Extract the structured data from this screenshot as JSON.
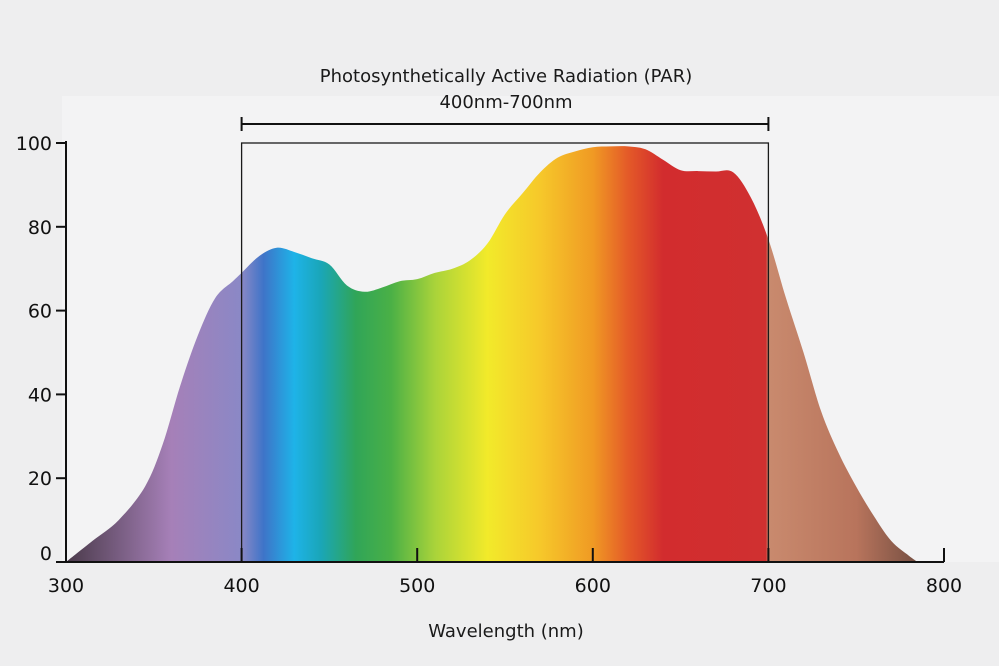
{
  "chart_data": {
    "type": "area",
    "title": "Photosynthetically Active Radiation (PAR)",
    "subtitle": "400nm-700nm",
    "xlabel": "Wavelength (nm)",
    "ylabel": "",
    "xlim": [
      300,
      800
    ],
    "ylim": [
      0,
      100
    ],
    "x_ticks": [
      300,
      400,
      500,
      600,
      700,
      800
    ],
    "y_ticks": [
      0,
      20,
      40,
      60,
      80,
      100
    ],
    "par_range": [
      400,
      700
    ],
    "grid": false,
    "series": [
      {
        "x": [
          300,
          315,
          330,
          345,
          355,
          365,
          375,
          385,
          395,
          400,
          410,
          420,
          430,
          440,
          450,
          460,
          470,
          480,
          490,
          500,
          510,
          520,
          530,
          540,
          550,
          560,
          570,
          580,
          590,
          600,
          610,
          620,
          630,
          640,
          650,
          660,
          670,
          680,
          690,
          700,
          710,
          720,
          730,
          740,
          750,
          760,
          770,
          780,
          785
        ],
        "y": [
          0,
          5,
          10,
          18,
          28,
          42,
          54,
          63,
          67,
          69,
          73,
          75,
          74,
          72.5,
          71,
          66,
          64.5,
          65.5,
          67,
          67.5,
          69,
          70,
          72,
          76,
          83,
          88,
          93,
          96.5,
          98,
          99,
          99.2,
          99.2,
          98.5,
          96,
          93.5,
          93.3,
          93.2,
          93,
          87,
          77,
          63,
          50,
          36,
          26,
          18,
          11,
          5,
          1.5,
          0
        ]
      }
    ],
    "colors": {
      "violet": "#8b7fbe",
      "purple_dark": "#6b5466",
      "blue": "#1eb3e8",
      "green": "#3aa84a",
      "yellow": "#f2ea2a",
      "orange": "#f09a24",
      "red": "#d22c2e",
      "far_red": "#c78068",
      "far_red_dark": "#6a4b40"
    }
  }
}
